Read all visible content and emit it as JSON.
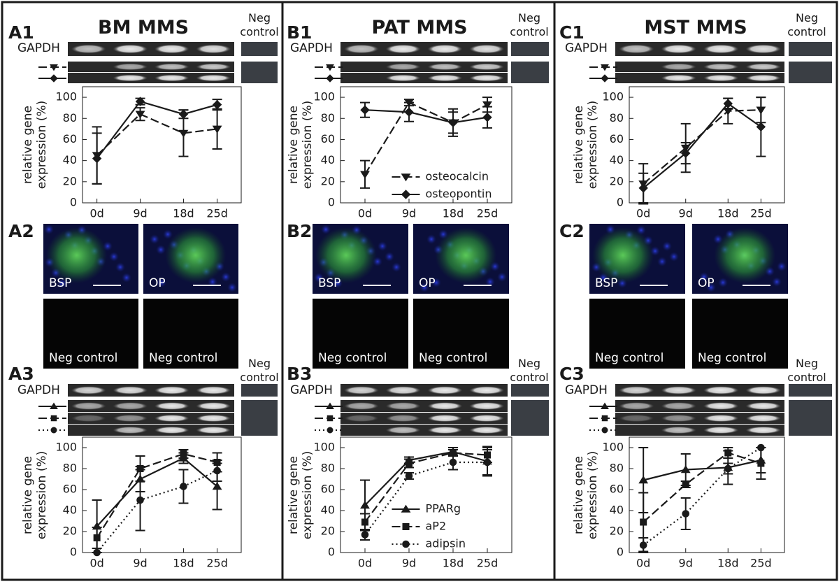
{
  "columns": [
    {
      "title": "BM MMS",
      "panel_top": "A1",
      "panel_mid": "A2",
      "panel_bottom": "A3",
      "neg_top": "Neg control",
      "gapdh_top": "GAPDH",
      "images": [
        "BSP",
        "OP",
        "Neg control",
        "Neg control"
      ],
      "neg_bottom": "Neg control",
      "gapdh_bottom": "GAPDH"
    },
    {
      "title": "PAT MMS",
      "panel_top": "B1",
      "panel_mid": "B2",
      "panel_bottom": "B3",
      "neg_top": "Neg control",
      "gapdh_top": "GAPDH",
      "images": [
        "BSP",
        "OP",
        "Neg control",
        "Neg control"
      ],
      "neg_bottom": "Neg control",
      "gapdh_bottom": "GAPDH"
    },
    {
      "title": "MST MMS",
      "panel_top": "C1",
      "panel_mid": "C2",
      "panel_bottom": "C3",
      "neg_top": "Neg control",
      "gapdh_top": "GAPDH",
      "images": [
        "BSP",
        "OP",
        "Neg control",
        "Neg control"
      ],
      "neg_bottom": "Neg control",
      "gapdh_bottom": "GAPDH"
    }
  ],
  "chart_data": [
    {
      "type": "line",
      "x": [
        0,
        9,
        18,
        25
      ],
      "xlim": [
        -3,
        30
      ],
      "xticks": [
        {
          "value": 0,
          "label": "0d"
        },
        {
          "value": 9,
          "label": "9d"
        },
        {
          "value": 18,
          "label": "18d"
        },
        {
          "value": 25,
          "label": "25d"
        }
      ],
      "ylim": [
        0,
        110
      ],
      "yticks": [
        0,
        20,
        40,
        60,
        80,
        100
      ],
      "ylabel": "relative gene expression (%)",
      "series": [
        {
          "color": "#1a1a1a",
          "dash": "dashed",
          "marker": "triangle-down",
          "values": [
            45,
            84,
            66,
            70
          ],
          "errors": [
            27,
            6,
            22,
            19
          ]
        },
        {
          "color": "#1a1a1a",
          "dash": "solid",
          "marker": "diamond",
          "values": [
            42,
            96,
            84,
            93
          ],
          "errors": [
            24,
            3,
            4,
            5
          ]
        }
      ]
    },
    {
      "type": "line",
      "x": [
        0,
        9,
        18,
        25
      ],
      "xlim": [
        -3,
        30
      ],
      "xticks": [
        {
          "value": 0,
          "label": "0d"
        },
        {
          "value": 9,
          "label": "9d"
        },
        {
          "value": 18,
          "label": "18d"
        },
        {
          "value": 25,
          "label": "25d"
        }
      ],
      "ylim": [
        0,
        110
      ],
      "yticks": [
        0,
        20,
        40,
        60,
        80,
        100
      ],
      "ylabel": "relative gene expression (%)",
      "series": [
        {
          "color": "#1a1a1a",
          "dash": "solid",
          "marker": "triangle-up",
          "values": [
            25,
            70,
            90,
            63
          ],
          "errors": [
            25,
            12,
            5,
            22
          ]
        },
        {
          "color": "#1a1a1a",
          "dash": "dashed",
          "marker": "square",
          "values": [
            14,
            80,
            94,
            86
          ],
          "errors": [
            10,
            12,
            4,
            9
          ]
        },
        {
          "color": "#1a1a1a",
          "dash": "dotted",
          "marker": "circle",
          "values": [
            0,
            50,
            63,
            78
          ],
          "errors": [
            0,
            29,
            16,
            10
          ]
        }
      ]
    },
    {
      "type": "line",
      "x": [
        0,
        9,
        18,
        25
      ],
      "xlim": [
        -5,
        30
      ],
      "xticks": [
        {
          "value": 0,
          "label": "0d"
        },
        {
          "value": 9,
          "label": "9d"
        },
        {
          "value": 18,
          "label": "18d"
        },
        {
          "value": 25,
          "label": "25d"
        }
      ],
      "ylim": [
        0,
        110
      ],
      "yticks": [
        0,
        20,
        40,
        60,
        80,
        100
      ],
      "ylabel": "relative gene expression (%)",
      "legend": "lower right",
      "series": [
        {
          "name": "osteocalcin",
          "color": "#1a1a1a",
          "dash": "dashed",
          "marker": "triangle-down",
          "values": [
            27,
            95,
            76,
            93
          ],
          "errors": [
            13,
            3,
            10,
            7
          ]
        },
        {
          "name": "osteopontin",
          "color": "#1a1a1a",
          "dash": "solid",
          "marker": "diamond",
          "values": [
            88,
            86,
            76,
            81
          ],
          "errors": [
            7,
            9,
            13,
            10
          ]
        }
      ]
    },
    {
      "type": "line",
      "x": [
        0,
        9,
        18,
        25
      ],
      "xlim": [
        -5,
        30
      ],
      "xticks": [
        {
          "value": 0,
          "label": "0d"
        },
        {
          "value": 9,
          "label": "9d"
        },
        {
          "value": 18,
          "label": "18d"
        },
        {
          "value": 25,
          "label": "25d"
        }
      ],
      "ylim": [
        0,
        110
      ],
      "yticks": [
        0,
        20,
        40,
        60,
        80,
        100
      ],
      "ylabel": "relative gene expression (%)",
      "legend": "lower right",
      "series": [
        {
          "name": "PPARg",
          "color": "#1a1a1a",
          "dash": "solid",
          "marker": "triangle-up",
          "values": [
            45,
            88,
            96,
            87
          ],
          "errors": [
            24,
            3,
            4,
            14
          ]
        },
        {
          "name": "aP2",
          "color": "#1a1a1a",
          "dash": "dashed",
          "marker": "square",
          "values": [
            29,
            85,
            95,
            93
          ],
          "errors": [
            8,
            4,
            3,
            7
          ]
        },
        {
          "name": "adipsin",
          "color": "#1a1a1a",
          "dash": "dotted",
          "marker": "circle",
          "values": [
            17,
            73,
            86,
            86
          ],
          "errors": [
            5,
            3,
            7,
            12
          ]
        }
      ]
    },
    {
      "type": "line",
      "x": [
        0,
        9,
        18,
        25
      ],
      "xlim": [
        -3,
        30
      ],
      "xticks": [
        {
          "value": 0,
          "label": "0d"
        },
        {
          "value": 9,
          "label": "9d"
        },
        {
          "value": 18,
          "label": "18d"
        },
        {
          "value": 25,
          "label": "25d"
        }
      ],
      "ylim": [
        0,
        110
      ],
      "yticks": [
        0,
        20,
        40,
        60,
        80,
        100
      ],
      "ylabel": "relative gene expression (%)",
      "series": [
        {
          "color": "#1a1a1a",
          "dash": "dashed",
          "marker": "triangle-down",
          "values": [
            18,
            52,
            87,
            88
          ],
          "errors": [
            19,
            23,
            12,
            12
          ]
        },
        {
          "color": "#1a1a1a",
          "dash": "solid",
          "marker": "diamond",
          "values": [
            14,
            47,
            94,
            72
          ],
          "errors": [
            14,
            10,
            5,
            28
          ]
        }
      ]
    },
    {
      "type": "line",
      "x": [
        0,
        9,
        18,
        25
      ],
      "xlim": [
        -3,
        30
      ],
      "xticks": [
        {
          "value": 0,
          "label": "0d"
        },
        {
          "value": 9,
          "label": "9d"
        },
        {
          "value": 18,
          "label": "18d"
        },
        {
          "value": 25,
          "label": "25d"
        }
      ],
      "ylim": [
        0,
        110
      ],
      "yticks": [
        0,
        20,
        40,
        60,
        80,
        100
      ],
      "ylabel": "relative gene expression (%)",
      "series": [
        {
          "color": "#1a1a1a",
          "dash": "solid",
          "marker": "triangle-up",
          "values": [
            69,
            79,
            81,
            88
          ],
          "errors": [
            31,
            15,
            16,
            12
          ]
        },
        {
          "color": "#1a1a1a",
          "dash": "dashed",
          "marker": "square",
          "values": [
            29,
            65,
            95,
            85
          ],
          "errors": [
            28,
            3,
            5,
            15
          ]
        },
        {
          "color": "#1a1a1a",
          "dash": "dotted",
          "marker": "circle",
          "values": [
            7,
            37,
            80,
            100
          ],
          "errors": [
            7,
            15,
            5,
            0
          ]
        }
      ]
    }
  ]
}
